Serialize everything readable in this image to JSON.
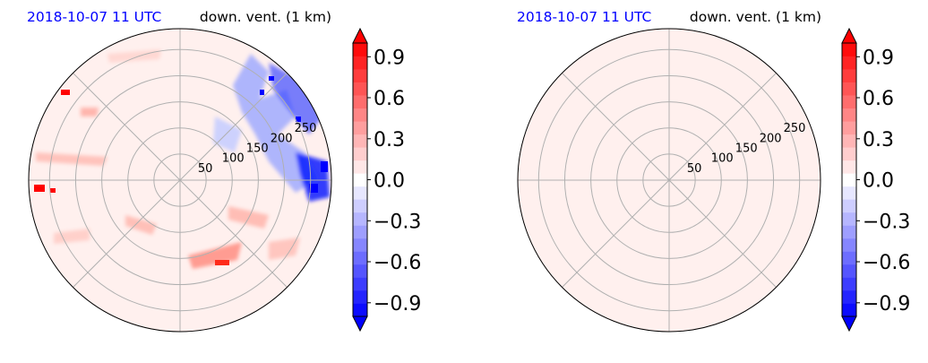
{
  "chart_data": [
    {
      "type": "heatmap",
      "projection": "polar",
      "title_left": "2018-10-07 11 UTC",
      "title_right": "down. vent. (1 km)",
      "title_left_color": "#0000ff",
      "radial_ticks": [
        "50",
        "100",
        "150",
        "200",
        "250"
      ],
      "radial_values": [
        50,
        100,
        150,
        200,
        250
      ],
      "radial_max": 290,
      "angular_gridline_step_deg": 45,
      "field": "noisy anomaly: positive streaks and blobs, strong negatives toward the north-east",
      "colorbar": {
        "ticks": [
          "0.9",
          "0.6",
          "0.3",
          "0.0",
          "−0.3",
          "−0.6",
          "−0.9"
        ],
        "tick_values": [
          0.9,
          0.6,
          0.3,
          0.0,
          -0.3,
          -0.6,
          -0.9
        ],
        "vmin": -1.0,
        "vmax": 1.0,
        "levels": 21,
        "extend": "both",
        "cmap": "bwr",
        "low_color": "#0000ff",
        "mid_color": "#ffffff",
        "high_color": "#ff0000"
      },
      "grid": true
    },
    {
      "type": "heatmap",
      "projection": "polar",
      "title_left": "2018-10-07 11 UTC",
      "title_right": "down. vent. (1 km)",
      "title_left_color": "#0000ff",
      "radial_ticks": [
        "50",
        "100",
        "150",
        "200",
        "250"
      ],
      "radial_values": [
        50,
        100,
        150,
        200,
        250
      ],
      "radial_max": 290,
      "angular_gridline_step_deg": 45,
      "field": "uniform, value just above 0.0",
      "colorbar": {
        "ticks": [
          "0.9",
          "0.6",
          "0.3",
          "0.0",
          "−0.3",
          "−0.6",
          "−0.9"
        ],
        "tick_values": [
          0.9,
          0.6,
          0.3,
          0.0,
          -0.3,
          -0.6,
          -0.9
        ],
        "vmin": -1.0,
        "vmax": 1.0,
        "levels": 21,
        "extend": "both",
        "cmap": "bwr",
        "low_color": "#0000ff",
        "mid_color": "#ffffff",
        "high_color": "#ff0000"
      },
      "grid": true
    }
  ]
}
